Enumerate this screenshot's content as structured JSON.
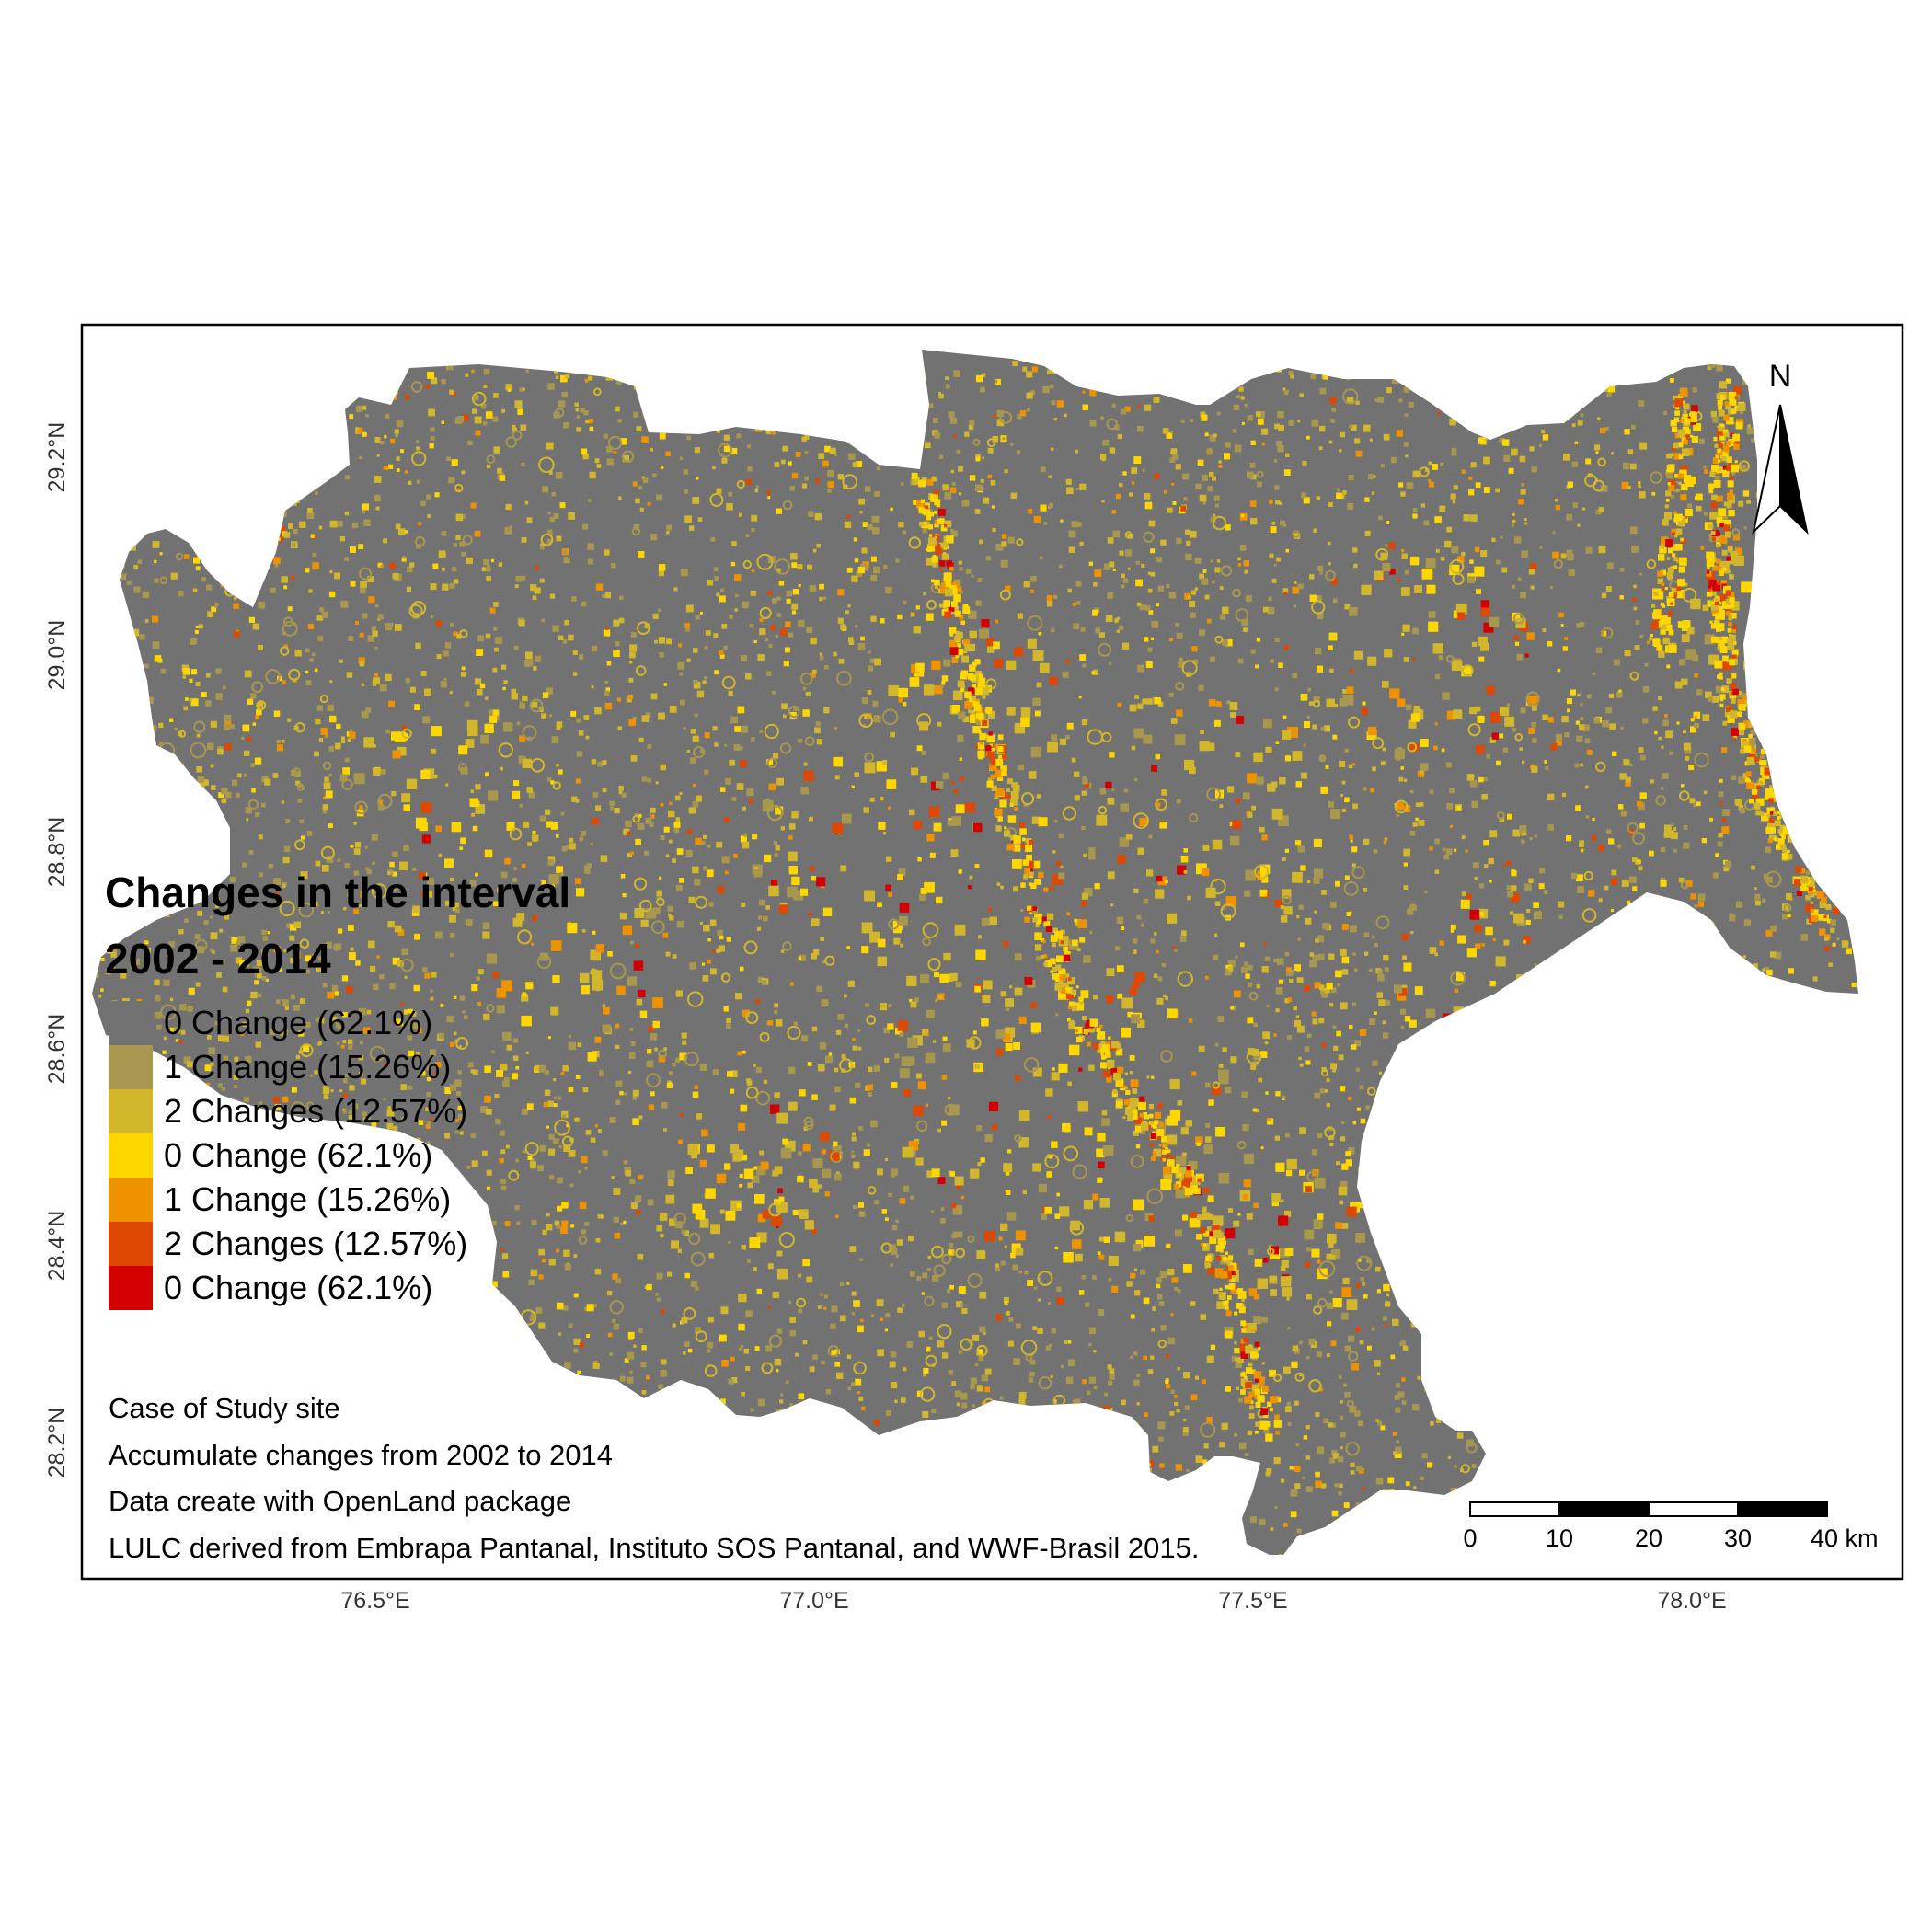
{
  "chart_data": {
    "type": "raster_map",
    "colors": {
      "background": "#727272",
      "frame": "#000000"
    },
    "x_axis": {
      "ticks": [
        {
          "lon": 76.5,
          "label": "76.5°E"
        },
        {
          "lon": 77.0,
          "label": "77.0°E"
        },
        {
          "lon": 77.5,
          "label": "77.5°E"
        },
        {
          "lon": 78.0,
          "label": "78.0°E"
        }
      ]
    },
    "y_axis": {
      "ticks": [
        {
          "lat": 29.2,
          "label": "29.2°N"
        },
        {
          "lat": 29.0,
          "label": "29.0°N"
        },
        {
          "lat": 28.8,
          "label": "28.8°N"
        },
        {
          "lat": 28.6,
          "label": "28.6°N"
        },
        {
          "lat": 28.4,
          "label": "28.4°N"
        },
        {
          "lat": 28.2,
          "label": "28.2°N"
        }
      ]
    },
    "legend": {
      "title_line1": "Changes in the interval",
      "title_line2": "2002 - 2014",
      "items": [
        {
          "label": "0 Change (62.1%)",
          "color": "#727272"
        },
        {
          "label": "1 Change (15.26%)",
          "color": "#a8974f"
        },
        {
          "label": "2 Changes (12.57%)",
          "color": "#d2b72c"
        },
        {
          "label": "0 Change (62.1%)",
          "color": "#ffd700"
        },
        {
          "label": "1 Change (15.26%)",
          "color": "#ef9200"
        },
        {
          "label": "2 Changes (12.57%)",
          "color": "#de4800"
        },
        {
          "label": "0 Change (62.1%)",
          "color": "#d20000"
        }
      ]
    },
    "captions": [
      "Case of Study site",
      "Accumulate changes from 2002 to 2014",
      "Data create with OpenLand package",
      "LULC derived from Embrapa Pantanal, Instituto SOS Pantanal, and WWF-Brasil 2015."
    ],
    "scale_bar": {
      "ticks": [
        "0",
        "10",
        "20",
        "30",
        "40 km"
      ]
    },
    "north_arrow": {
      "label": "N"
    }
  }
}
